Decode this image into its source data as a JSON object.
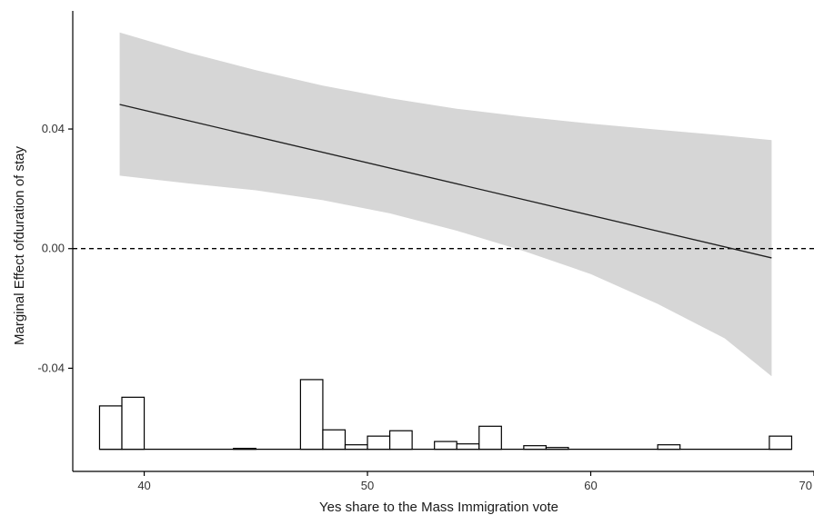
{
  "chart_data": {
    "type": "line",
    "title": "",
    "xlabel": "Yes share to the Mass Immigration vote",
    "ylabel": "Marginal Effect ofduration of stay",
    "xlim": [
      36.8,
      70
    ],
    "ylim": [
      -0.0745,
      0.0795
    ],
    "x_ticks": [
      40,
      50,
      60,
      70
    ],
    "x_tick_labels": [
      "40",
      "50",
      "60",
      "70"
    ],
    "y_ticks": [
      0.04,
      0.0,
      -0.04
    ],
    "y_tick_labels": [
      "0.04",
      "0.00",
      "-0.04"
    ],
    "grid": false,
    "legend": "none",
    "reference_line": {
      "y": 0.0,
      "style": "dashed"
    },
    "series": [
      {
        "x": [
          38.9,
          68.1
        ],
        "y": [
          0.0482,
          -0.0031
        ],
        "ci_lower": [
          0.0244,
          -0.0427
        ],
        "ci_upper": [
          0.0723,
          0.0363
        ]
      }
    ],
    "ribbon_x": [
      38.9,
      42,
      45,
      48,
      51,
      54,
      57,
      60,
      63,
      66,
      68.1
    ],
    "ribbon_upper": [
      0.0723,
      0.0655,
      0.0597,
      0.0545,
      0.0503,
      0.0468,
      0.0441,
      0.0418,
      0.0398,
      0.0378,
      0.0363
    ],
    "ribbon_lower": [
      0.0244,
      0.0218,
      0.0195,
      0.0162,
      0.0118,
      0.006,
      -0.0008,
      -0.0085,
      -0.0185,
      -0.03,
      -0.0427
    ],
    "histogram": {
      "baseline": -0.0671,
      "bin_width": 1,
      "bins": [
        {
          "x0": 38,
          "height": 0.0145
        },
        {
          "x0": 39,
          "height": 0.0174
        },
        {
          "x0": 44,
          "height": 0.0003
        },
        {
          "x0": 47,
          "height": 0.0233
        },
        {
          "x0": 48,
          "height": 0.0065
        },
        {
          "x0": 49,
          "height": 0.0015
        },
        {
          "x0": 50,
          "height": 0.0044
        },
        {
          "x0": 51,
          "height": 0.0062
        },
        {
          "x0": 53,
          "height": 0.0026
        },
        {
          "x0": 54,
          "height": 0.0018
        },
        {
          "x0": 55,
          "height": 0.0077
        },
        {
          "x0": 57,
          "height": 0.0012
        },
        {
          "x0": 58,
          "height": 0.0006
        },
        {
          "x0": 63,
          "height": 0.0015
        },
        {
          "x0": 68,
          "height": 0.0044
        }
      ]
    },
    "colors": {
      "ribbon": "#d6d6d6",
      "line": "#1f1f1f",
      "axis": "#000000",
      "bar_fill": "#ffffff",
      "bar_stroke": "#000000"
    }
  }
}
